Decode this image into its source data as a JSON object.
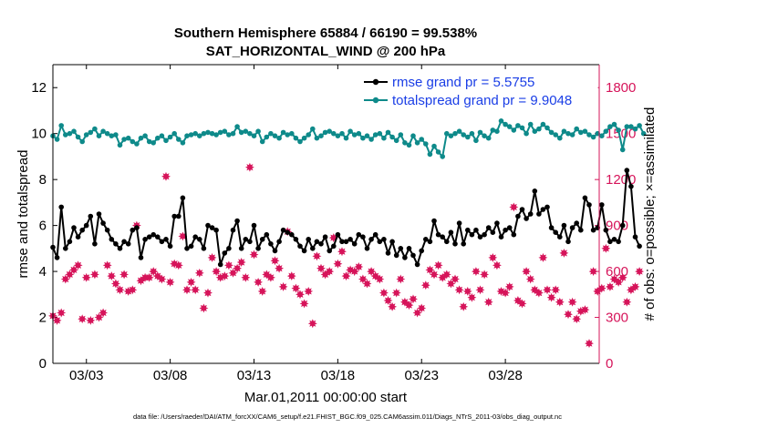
{
  "colors": {
    "rmse": "#000000",
    "spread": "#0e8a8a",
    "obs": "#d6145a",
    "legend_text": "#1a3ee6",
    "axis": "#000000",
    "grid": "#e8e8e8"
  },
  "chart_data": {
    "type": "line",
    "title": "Southern Hemisphere 65884 / 66190 = 99.538%",
    "subtitle": "SAT_HORIZONTAL_WIND @ 200 hPa",
    "xlabel": "Mar.01,2011 00:00:00 start",
    "ylabel_left": "rmse and totalspread",
    "ylabel_right": "# of obs: o=possible; ×=assimilated",
    "xlim": [
      1,
      33.6
    ],
    "ylim_left": [
      0,
      13
    ],
    "ylim_right": [
      0,
      1950
    ],
    "x_ticks": [
      {
        "x": 3,
        "label": "03/03"
      },
      {
        "x": 8,
        "label": "03/08"
      },
      {
        "x": 13,
        "label": "03/13"
      },
      {
        "x": 18,
        "label": "03/18"
      },
      {
        "x": 23,
        "label": "03/23"
      },
      {
        "x": 28,
        "label": "03/28"
      }
    ],
    "y_ticks_left": [
      0,
      2,
      4,
      6,
      8,
      10,
      12
    ],
    "y_ticks_right": [
      0,
      300,
      600,
      900,
      1200,
      1500,
      1800
    ],
    "grid": false,
    "legend_position": "top-right",
    "legend": [
      {
        "name": "rmse grand pr = 5.5755",
        "color": "rmse"
      },
      {
        "name": "totalspread grand pr = 9.9048",
        "color": "spread"
      }
    ],
    "time_step_days": 0.25,
    "series": [
      {
        "name": "rmse",
        "axis": "left",
        "values": [
          5.05,
          4.6,
          6.8,
          5.0,
          5.3,
          5.9,
          5.5,
          5.8,
          6.0,
          6.4,
          5.2,
          6.5,
          6.1,
          5.8,
          5.4,
          5.2,
          5.0,
          5.3,
          5.2,
          5.8,
          5.9,
          4.6,
          5.4,
          5.5,
          5.6,
          5.5,
          5.3,
          5.4,
          5.1,
          6.4,
          6.4,
          7.2,
          5.0,
          5.1,
          5.5,
          5.4,
          5.0,
          6.0,
          5.9,
          5.8,
          4.3,
          4.8,
          5.0,
          5.8,
          6.2,
          5.0,
          5.4,
          5.3,
          6.0,
          5.0,
          5.4,
          5.6,
          5.2,
          4.9,
          5.3,
          5.8,
          5.7,
          5.6,
          5.4,
          5.1,
          4.9,
          5.4,
          5.0,
          5.3,
          5.2,
          5.5,
          4.9,
          5.1,
          5.6,
          5.3,
          5.3,
          5.4,
          5.2,
          5.6,
          5.5,
          5.0,
          5.4,
          5.6,
          5.3,
          5.4,
          4.8,
          5.3,
          4.7,
          5.0,
          4.6,
          5.0,
          4.7,
          4.3,
          4.9,
          5.4,
          5.3,
          6.2,
          5.6,
          5.5,
          5.3,
          5.7,
          5.2,
          6.1,
          5.2,
          5.8,
          5.6,
          5.8,
          5.5,
          5.6,
          5.9,
          5.7,
          6.1,
          5.5,
          5.8,
          5.9,
          5.6,
          6.4,
          6.7,
          6.3,
          6.5,
          7.5,
          6.5,
          6.7,
          6.8,
          5.9,
          5.7,
          5.5,
          6.0,
          5.3,
          5.9,
          6.1,
          5.8,
          7.2,
          6.9,
          5.8,
          5.9,
          6.9,
          5.8,
          5.3,
          5.4,
          5.3,
          6.0,
          8.4,
          7.7,
          5.5,
          5.1
        ]
      },
      {
        "name": "totalspread",
        "axis": "left",
        "values": [
          9.9,
          9.75,
          10.35,
          9.95,
          10.0,
          10.1,
          9.85,
          9.65,
          9.95,
          10.05,
          10.2,
          9.9,
          10.1,
          10.0,
          9.9,
          9.95,
          9.5,
          9.75,
          9.8,
          9.65,
          9.55,
          9.8,
          9.9,
          9.65,
          9.6,
          9.8,
          9.9,
          9.7,
          9.85,
          10.0,
          9.75,
          9.6,
          9.9,
          9.95,
          10.0,
          9.9,
          10.0,
          10.05,
          10.0,
          9.95,
          10.05,
          10.1,
          9.95,
          10.0,
          10.3,
          10.05,
          10.1,
          10.0,
          9.9,
          10.1,
          9.65,
          9.85,
          10.0,
          9.9,
          9.8,
          10.05,
          9.95,
          10.0,
          9.8,
          9.65,
          9.8,
          9.95,
          10.2,
          9.8,
          9.9,
          10.05,
          10.1,
          10.0,
          9.9,
          10.0,
          9.8,
          10.1,
          9.95,
          10.0,
          9.8,
          9.9,
          9.75,
          9.95,
          10.0,
          9.8,
          10.05,
          9.85,
          9.7,
          9.95,
          9.6,
          9.5,
          9.9,
          9.6,
          9.75,
          9.55,
          9.1,
          9.45,
          9.2,
          9.0,
          10.0,
          9.9,
          10.0,
          10.1,
          9.95,
          9.85,
          10.0,
          9.7,
          10.05,
          9.9,
          9.8,
          10.15,
          10.1,
          10.55,
          10.4,
          10.3,
          10.15,
          10.35,
          10.25,
          10.0,
          10.4,
          10.1,
          10.2,
          10.4,
          10.25,
          10.05,
          9.95,
          9.8,
          10.1,
          10.0,
          9.95,
          10.2,
          10.05,
          10.1,
          9.95,
          9.85,
          10.0,
          9.9,
          10.1,
          10.3,
          10.4,
          10.15,
          9.3,
          10.3,
          10.3,
          10.2,
          10.35,
          10.0
        ]
      },
      {
        "name": "obs_assimilated",
        "axis": "right",
        "marker": "star",
        "values": [
          310,
          280,
          330,
          550,
          580,
          610,
          640,
          290,
          560,
          280,
          580,
          300,
          330,
          640,
          570,
          520,
          480,
          580,
          470,
          480,
          900,
          540,
          560,
          560,
          600,
          570,
          550,
          1220,
          530,
          650,
          640,
          830,
          480,
          530,
          480,
          590,
          360,
          460,
          690,
          600,
          560,
          570,
          640,
          590,
          620,
          660,
          560,
          1280,
          710,
          530,
          470,
          580,
          560,
          670,
          620,
          500,
          860,
          570,
          490,
          450,
          390,
          470,
          260,
          700,
          620,
          580,
          600,
          820,
          650,
          730,
          570,
          610,
          600,
          630,
          550,
          520,
          600,
          570,
          550,
          460,
          410,
          370,
          460,
          550,
          400,
          380,
          420,
          330,
          360,
          510,
          610,
          580,
          640,
          560,
          580,
          520,
          550,
          480,
          370,
          470,
          430,
          600,
          480,
          580,
          400,
          690,
          640,
          470,
          460,
          500,
          1020,
          410,
          390,
          600,
          550,
          480,
          460,
          690,
          480,
          430,
          480,
          400,
          720,
          320,
          400,
          290,
          340,
          350,
          130,
          600,
          470,
          490,
          750,
          500,
          550,
          530,
          560,
          400,
          480,
          500,
          600
        ]
      }
    ]
  },
  "footer": "data file: /Users/raeder/DAI/ATM_forcXX/CAM6_setup/f.e21.FHIST_BGC.f09_025.CAM6assim.011/Diags_NTrS_2011-03/obs_diag_output.nc"
}
